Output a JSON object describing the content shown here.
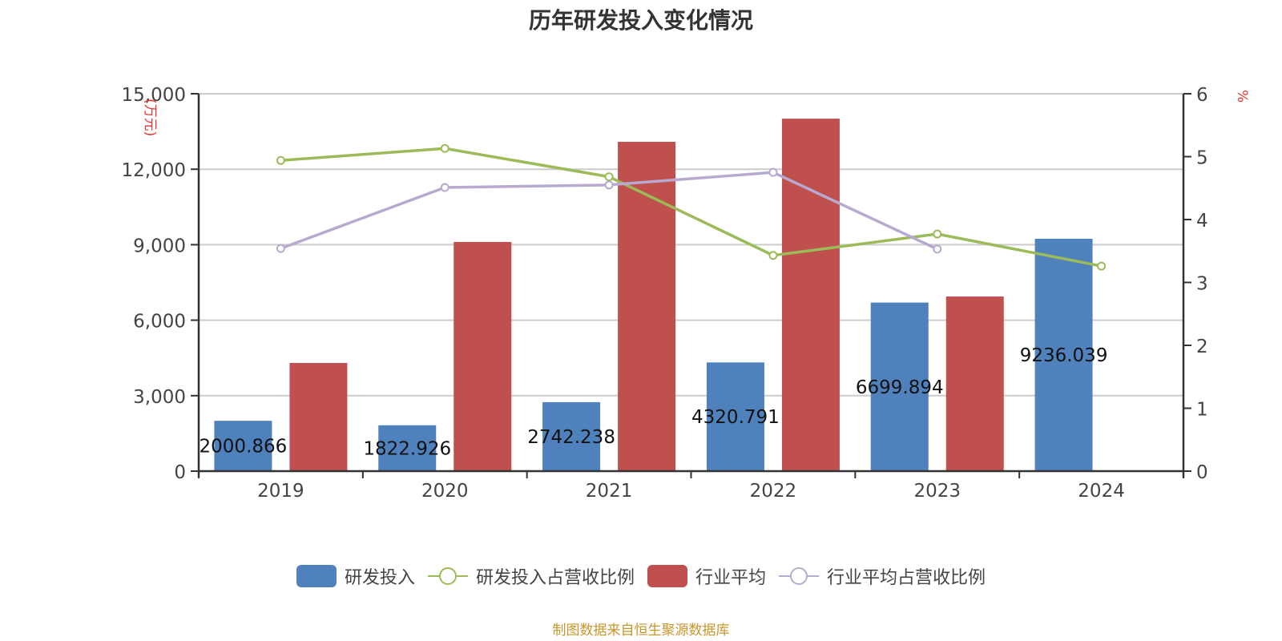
{
  "title": "历年研发投入变化情况",
  "source_note": "制图数据来自恒生聚源数据库",
  "legend": [
    {
      "label": "研发投入",
      "type": "bar",
      "color": "#4f81bd"
    },
    {
      "label": "研发投入占营收比例",
      "type": "line",
      "color": "#9bbb59"
    },
    {
      "label": "行业平均",
      "type": "bar",
      "color": "#c0504d"
    },
    {
      "label": "行业平均占营收比例",
      "type": "line",
      "color": "#b8a9d0"
    }
  ],
  "chart_data": {
    "type": "bar",
    "title": "历年研发投入变化情况",
    "categories": [
      "2019",
      "2020",
      "2021",
      "2022",
      "2023",
      "2024"
    ],
    "xlabel": "",
    "ylabel": "万元",
    "ylabel_right": "%",
    "ylim": [
      0,
      15000
    ],
    "ylim_right": [
      0,
      6
    ],
    "yticks": [
      "0",
      "3,000",
      "6,000",
      "9,000",
      "12,000",
      "15,000"
    ],
    "yticks_right": [
      "0",
      "1",
      "2",
      "3",
      "4",
      "5",
      "6"
    ],
    "grid": true,
    "legend_position": "bottom",
    "series": [
      {
        "name": "研发投入",
        "type": "bar",
        "axis": "left",
        "color": "#4f81bd",
        "values": [
          2000.866,
          1822.926,
          2742.238,
          4320.791,
          6699.894,
          9236.039
        ],
        "labels": [
          "2000.866",
          "1822.926",
          "2742.238",
          "4320.791",
          "6699.894",
          "9236.039"
        ]
      },
      {
        "name": "行业平均",
        "type": "bar",
        "axis": "left",
        "color": "#c0504d",
        "values": [
          4300,
          9110,
          13090,
          14010,
          6940,
          null
        ]
      },
      {
        "name": "研发投入占营收比例",
        "type": "line",
        "axis": "right",
        "color": "#9bbb59",
        "values": [
          4.94,
          5.13,
          4.68,
          3.43,
          3.77,
          3.26
        ]
      },
      {
        "name": "行业平均占营收比例",
        "type": "line",
        "axis": "right",
        "color": "#b8a9d0",
        "values": [
          3.54,
          4.51,
          4.55,
          4.75,
          3.53,
          null
        ]
      }
    ]
  }
}
